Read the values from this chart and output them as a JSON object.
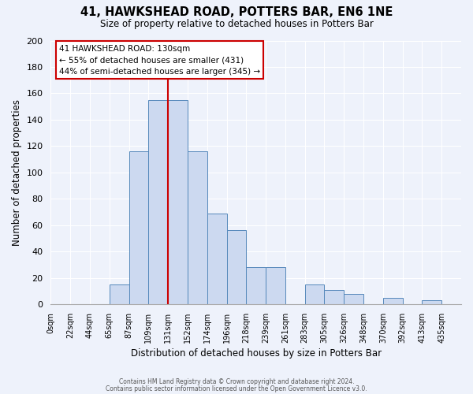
{
  "title": "41, HAWKSHEAD ROAD, POTTERS BAR, EN6 1NE",
  "subtitle": "Size of property relative to detached houses in Potters Bar",
  "xlabel": "Distribution of detached houses by size in Potters Bar",
  "ylabel": "Number of detached properties",
  "bin_labels": [
    "0sqm",
    "22sqm",
    "44sqm",
    "65sqm",
    "87sqm",
    "109sqm",
    "131sqm",
    "152sqm",
    "174sqm",
    "196sqm",
    "218sqm",
    "239sqm",
    "261sqm",
    "283sqm",
    "305sqm",
    "326sqm",
    "348sqm",
    "370sqm",
    "392sqm",
    "413sqm",
    "435sqm"
  ],
  "bar_values": [
    0,
    0,
    0,
    15,
    116,
    155,
    155,
    116,
    69,
    56,
    28,
    28,
    0,
    15,
    11,
    8,
    0,
    5,
    0,
    3,
    0
  ],
  "bar_color": "#ccd9f0",
  "bar_edge_color": "#5588bb",
  "highlight_line_color": "#cc0000",
  "ylim": [
    0,
    200
  ],
  "yticks": [
    0,
    20,
    40,
    60,
    80,
    100,
    120,
    140,
    160,
    180,
    200
  ],
  "annotation_title": "41 HAWKSHEAD ROAD: 130sqm",
  "annotation_line1": "← 55% of detached houses are smaller (431)",
  "annotation_line2": "44% of semi-detached houses are larger (345) →",
  "annotation_box_color": "#ffffff",
  "annotation_box_edge": "#cc0000",
  "footer_line1": "Contains HM Land Registry data © Crown copyright and database right 2024.",
  "footer_line2": "Contains public sector information licensed under the Open Government Licence v3.0.",
  "background_color": "#eef2fb",
  "grid_color": "#ffffff"
}
